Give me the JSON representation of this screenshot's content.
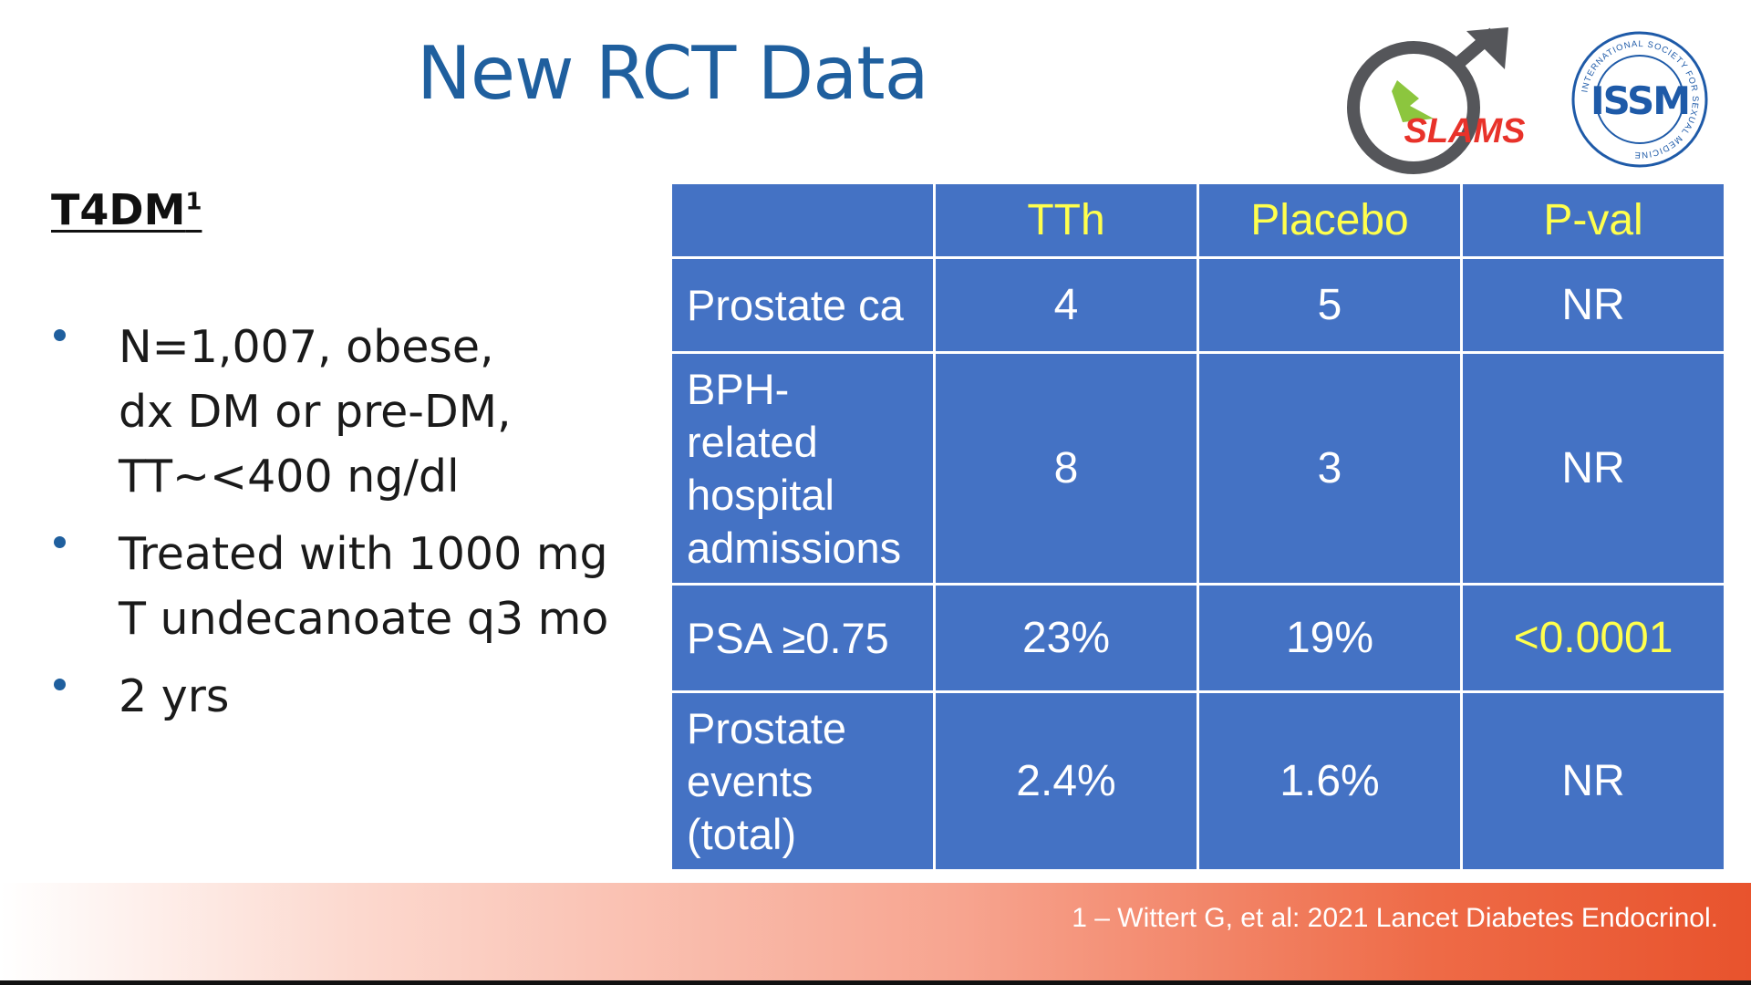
{
  "slide": {
    "title": "New RCT Data",
    "heading": "T4DM",
    "heading_sup": "1",
    "bullets": [
      [
        "N=1,007, obese,",
        "dx DM or pre-DM,",
        "TT~<400 ng/dl"
      ],
      [
        "Treated with 1000 mg",
        "T undecanoate q3 mo"
      ],
      [
        "2 yrs"
      ]
    ],
    "table": {
      "headers": [
        "",
        "TTh",
        "Placebo",
        "P-val"
      ],
      "rows": [
        {
          "label": [
            "Prostate ca"
          ],
          "cells": [
            "4",
            "5",
            "NR"
          ]
        },
        {
          "label": [
            "BPH-",
            "related",
            "hospital",
            "admissions"
          ],
          "cells": [
            "8",
            "3",
            "NR"
          ]
        },
        {
          "label": [
            "PSA ≥0.75"
          ],
          "cells": [
            "23%",
            "19%",
            "<0.0001"
          ]
        },
        {
          "label": [
            "Prostate",
            "events",
            "(total)"
          ],
          "cells": [
            "2.4%",
            "1.6%",
            "NR"
          ]
        }
      ]
    },
    "footnote": "1 – Wittert G, et al: 2021 Lancet Diabetes Endocrinol.",
    "logos": {
      "slams_text": "SLAMS",
      "issm_text": "ISSM",
      "issm_ring_text": "INTERNATIONAL SOCIETY FOR SEXUAL MEDICINE"
    },
    "colors": {
      "title": "#1f5f9e",
      "table_bg": "#4472c4",
      "highlight_text": "#ffff4d",
      "footer_accent": "#e8532d"
    }
  }
}
